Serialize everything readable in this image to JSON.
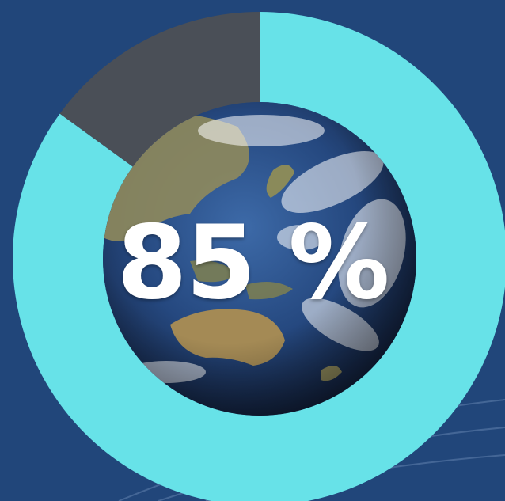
{
  "chart_data": {
    "type": "pie",
    "subtype": "donut",
    "values": [
      85,
      15
    ],
    "center_label": "85 %",
    "colors": {
      "filled": "#67e2e8",
      "remainder": "#4a4f57",
      "background": "#21467a"
    }
  }
}
